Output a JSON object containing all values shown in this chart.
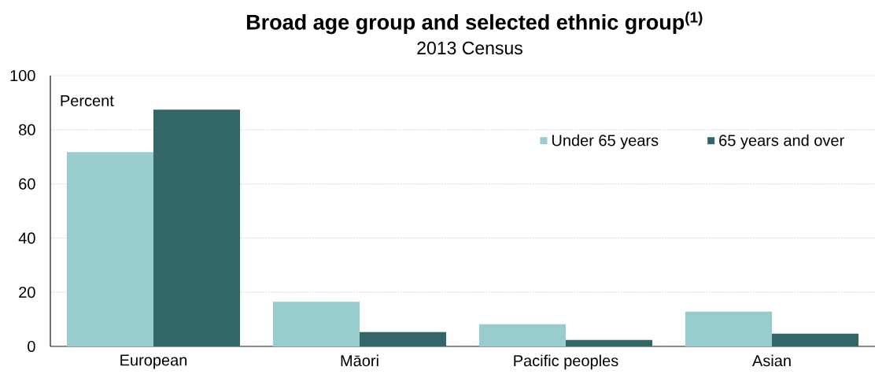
{
  "chart_data": {
    "type": "bar",
    "title": "Broad age group and selected ethnic group$^{(1)}$",
    "subtitle": "2013 Census",
    "ylabel": "Percent",
    "categories": [
      "European",
      "Māori",
      "Pacific peoples",
      "Asian"
    ],
    "series": [
      {
        "name": "Under 65 years",
        "color": "#99cccc",
        "values": [
          71.7,
          16.5,
          8.2,
          12.9
        ]
      },
      {
        "name": "65 years and over",
        "color": "#336666",
        "values": [
          87.4,
          5.3,
          2.4,
          4.7
        ]
      }
    ],
    "ylim": [
      0,
      100
    ],
    "yticks": [
      0,
      20,
      40,
      60,
      80,
      100
    ],
    "grid": "y",
    "legend": "top right"
  }
}
